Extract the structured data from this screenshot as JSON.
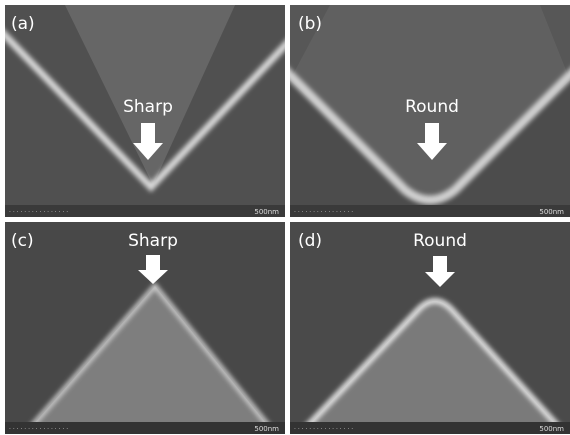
{
  "panels": [
    {
      "label": "(a)",
      "annotation": "Sharp",
      "scale": "500nm"
    },
    {
      "label": "(b)",
      "annotation": "Round",
      "scale": "500nm"
    },
    {
      "label": "(c)",
      "annotation": "Sharp",
      "scale": "500nm"
    },
    {
      "label": "(d)",
      "annotation": "Round",
      "scale": "500nm"
    }
  ]
}
